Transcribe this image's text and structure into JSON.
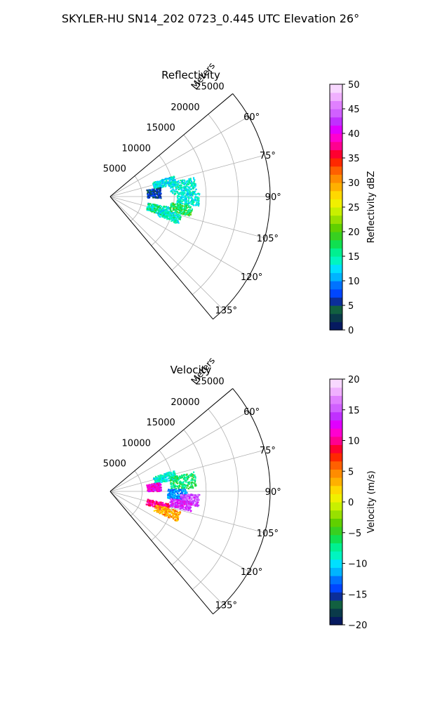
{
  "figure": {
    "suptitle": "SKYLER-HU  SN14_202  0723_0.445 UTC Elevation 26°"
  },
  "chart_data": [
    {
      "type": "polar-sector",
      "title": "Reflectivity",
      "radial_label": "Meters",
      "radial_ticks": [
        5000,
        10000,
        15000,
        20000,
        25000
      ],
      "radial_tick_labels": [
        "5000",
        "10000",
        "15000",
        "20000",
        "25000"
      ],
      "theta_range_deg": [
        50,
        140
      ],
      "theta_ticks_deg": [
        60,
        75,
        90,
        105,
        120,
        135
      ],
      "theta_tick_labels": [
        "60°",
        "75°",
        "90°",
        "105°",
        "120°",
        "135°"
      ],
      "grid": true,
      "colorbar": {
        "label": "Reflectivity dBZ",
        "vmin": 0,
        "vmax": 50,
        "ticks": [
          0,
          5,
          10,
          15,
          20,
          25,
          30,
          35,
          40,
          45,
          50
        ],
        "tick_labels": [
          "0",
          "5",
          "10",
          "15",
          "20",
          "25",
          "30",
          "35",
          "40",
          "45",
          "50"
        ],
        "colors": [
          "#061a60",
          "#0a3a4a",
          "#126040",
          "#0b2e9a",
          "#0046ff",
          "#0073ff",
          "#00b4ff",
          "#00e0ff",
          "#00f5c0",
          "#00f090",
          "#10e050",
          "#38d020",
          "#60d000",
          "#98e000",
          "#c8f000",
          "#f0f000",
          "#ffd800",
          "#ffb000",
          "#ff8c00",
          "#ff6000",
          "#ff2800",
          "#ff0030",
          "#ff0090",
          "#ff00d0",
          "#e000ff",
          "#c030ff",
          "#d060ff",
          "#e080ff",
          "#f0b0ff",
          "#f8d8ff"
        ]
      },
      "echo_clusters": [
        {
          "theta": [
            72,
            80
          ],
          "r": [
            7000,
            10500
          ],
          "value": [
            10,
            16
          ]
        },
        {
          "theta": [
            77,
            88
          ],
          "r": [
            9500,
            13500
          ],
          "value": [
            11,
            17
          ]
        },
        {
          "theta": [
            80,
            92
          ],
          "r": [
            5800,
            8000
          ],
          "value": [
            4,
            8
          ]
        },
        {
          "theta": [
            86,
            96
          ],
          "r": [
            10500,
            14000
          ],
          "value": [
            11,
            16
          ]
        },
        {
          "theta": [
            96,
            104
          ],
          "r": [
            9500,
            13000
          ],
          "value": [
            14,
            21
          ]
        },
        {
          "theta": [
            100,
            110
          ],
          "r": [
            6000,
            9500
          ],
          "value": [
            11,
            19
          ]
        },
        {
          "theta": [
            104,
            112
          ],
          "r": [
            8000,
            11500
          ],
          "value": [
            11,
            17
          ]
        }
      ]
    },
    {
      "type": "polar-sector",
      "title": "Velocity",
      "radial_label": "Meters",
      "radial_ticks": [
        5000,
        10000,
        15000,
        20000,
        25000
      ],
      "radial_tick_labels": [
        "5000",
        "10000",
        "15000",
        "20000",
        "25000"
      ],
      "theta_range_deg": [
        50,
        140
      ],
      "theta_ticks_deg": [
        60,
        75,
        90,
        105,
        120,
        135
      ],
      "theta_tick_labels": [
        "60°",
        "75°",
        "90°",
        "105°",
        "120°",
        "135°"
      ],
      "grid": true,
      "colorbar": {
        "label": "Velocity (m/s)",
        "vmin": -20,
        "vmax": 20,
        "ticks": [
          -20,
          -15,
          -10,
          -5,
          0,
          5,
          10,
          15,
          20
        ],
        "tick_labels": [
          "−20",
          "−15",
          "−10",
          "−5",
          "0",
          "5",
          "10",
          "15",
          "20"
        ],
        "colors": [
          "#061a60",
          "#0a3a4a",
          "#126040",
          "#0b2e9a",
          "#0046ff",
          "#0073ff",
          "#00b4ff",
          "#00e0ff",
          "#00f5c0",
          "#00f090",
          "#10e050",
          "#38d020",
          "#60d000",
          "#98e000",
          "#c8f000",
          "#f0f000",
          "#ffd800",
          "#ffb000",
          "#ff8c00",
          "#ff6000",
          "#ff2800",
          "#ff0030",
          "#ff0090",
          "#ff00d0",
          "#e000ff",
          "#c030ff",
          "#d060ff",
          "#e080ff",
          "#f0b0ff",
          "#f8d8ff"
        ]
      },
      "echo_clusters": [
        {
          "theta": [
            72,
            80
          ],
          "r": [
            7000,
            10500
          ],
          "value": [
            -11,
            -7
          ]
        },
        {
          "theta": [
            77,
            88
          ],
          "r": [
            9500,
            13500
          ],
          "value": [
            -9,
            -4
          ]
        },
        {
          "theta": [
            80,
            90
          ],
          "r": [
            5800,
            8000
          ],
          "value": [
            10,
            14
          ]
        },
        {
          "theta": [
            88,
            97
          ],
          "r": [
            9000,
            12000
          ],
          "value": [
            -14,
            -10
          ]
        },
        {
          "theta": [
            92,
            100
          ],
          "r": [
            11000,
            14000
          ],
          "value": [
            13,
            17
          ]
        },
        {
          "theta": [
            97,
            104
          ],
          "r": [
            9500,
            13000
          ],
          "value": [
            11,
            16
          ]
        },
        {
          "theta": [
            102,
            110
          ],
          "r": [
            6000,
            9500
          ],
          "value": [
            8,
            12
          ]
        },
        {
          "theta": [
            106,
            114
          ],
          "r": [
            7500,
            11500
          ],
          "value": [
            1,
            6
          ]
        }
      ]
    }
  ]
}
